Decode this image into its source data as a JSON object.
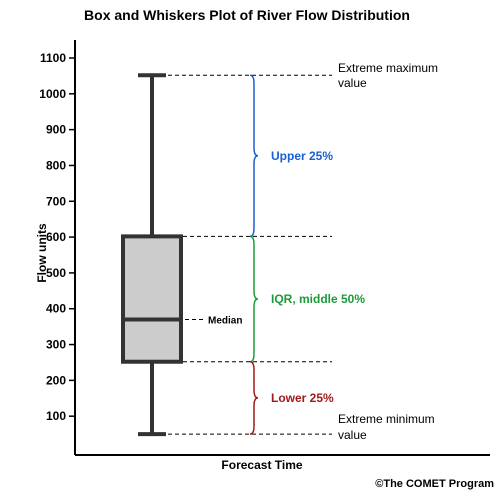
{
  "chart_data": {
    "type": "boxplot",
    "title": "Box and Whiskers Plot of River Flow Distribution",
    "xlabel": "Forecast Time",
    "ylabel": "Flow units",
    "ylim": [
      0,
      1150
    ],
    "yticks": [
      100,
      200,
      300,
      400,
      500,
      600,
      700,
      800,
      900,
      1000,
      1100
    ],
    "box": {
      "min": 50,
      "q1": 252,
      "median": 370,
      "q3": 602,
      "max": 1052
    },
    "annotations": {
      "max_line1": "Extreme maximum",
      "max_line2": "value",
      "min_line1": "Extreme minimum",
      "min_line2": "value",
      "median": "Median"
    },
    "brackets": [
      {
        "label": "Upper 25%",
        "from": 602,
        "to": 1052,
        "color": "#1a5fd0"
      },
      {
        "label": "IQR, middle 50%",
        "from": 252,
        "to": 602,
        "color": "#1e9a3a"
      },
      {
        "label": "Lower 25%",
        "from": 50,
        "to": 252,
        "color": "#a01a1a"
      }
    ],
    "box_fill": "#cccccc"
  },
  "credit": "©The COMET Program"
}
